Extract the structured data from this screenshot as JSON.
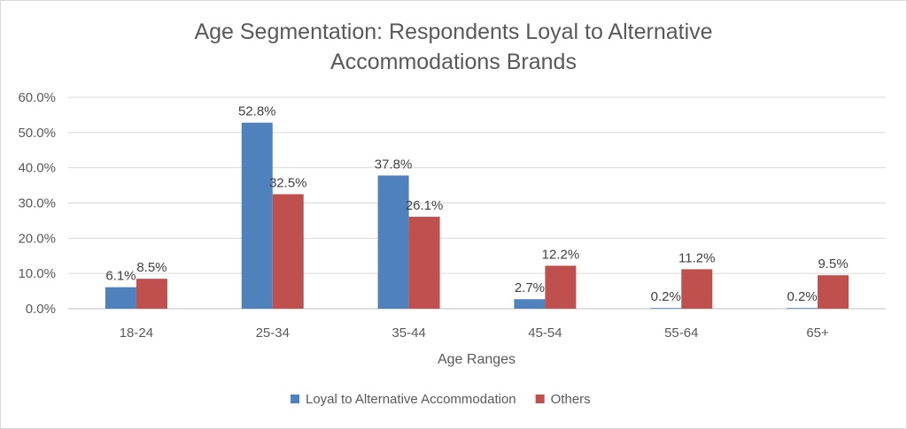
{
  "chart_data": {
    "type": "bar",
    "title_lines": [
      "Age Segmentation:  Respondents  Loyal to Alternative",
      "Accommodations  Brands"
    ],
    "xlabel": "Age Ranges",
    "ylabel": "",
    "categories": [
      "18-24",
      "25-34",
      "35-44",
      "45-54",
      "55-64",
      "65+"
    ],
    "series": [
      {
        "name": "Loyal to Alternative Accommodation",
        "color": "#4f81bd",
        "values": [
          6.1,
          52.8,
          37.8,
          2.7,
          0.2,
          0.2
        ],
        "labels": [
          "6.1%",
          "52.8%",
          "37.8%",
          "2.7%",
          "0.2%",
          "0.2%"
        ]
      },
      {
        "name": "Others",
        "color": "#c0504d",
        "values": [
          8.5,
          32.5,
          26.1,
          12.2,
          11.2,
          9.5
        ],
        "labels": [
          "8.5%",
          "32.5%",
          "26.1%",
          "12.2%",
          "11.2%",
          "9.5%"
        ]
      }
    ],
    "ylim": [
      0,
      60
    ],
    "yticks": [
      0,
      10,
      20,
      30,
      40,
      50,
      60
    ],
    "ytick_labels": [
      "0.0%",
      "10.0%",
      "20.0%",
      "30.0%",
      "40.0%",
      "50.0%",
      "60.0%"
    ],
    "grid": true,
    "legend_position": "bottom"
  }
}
